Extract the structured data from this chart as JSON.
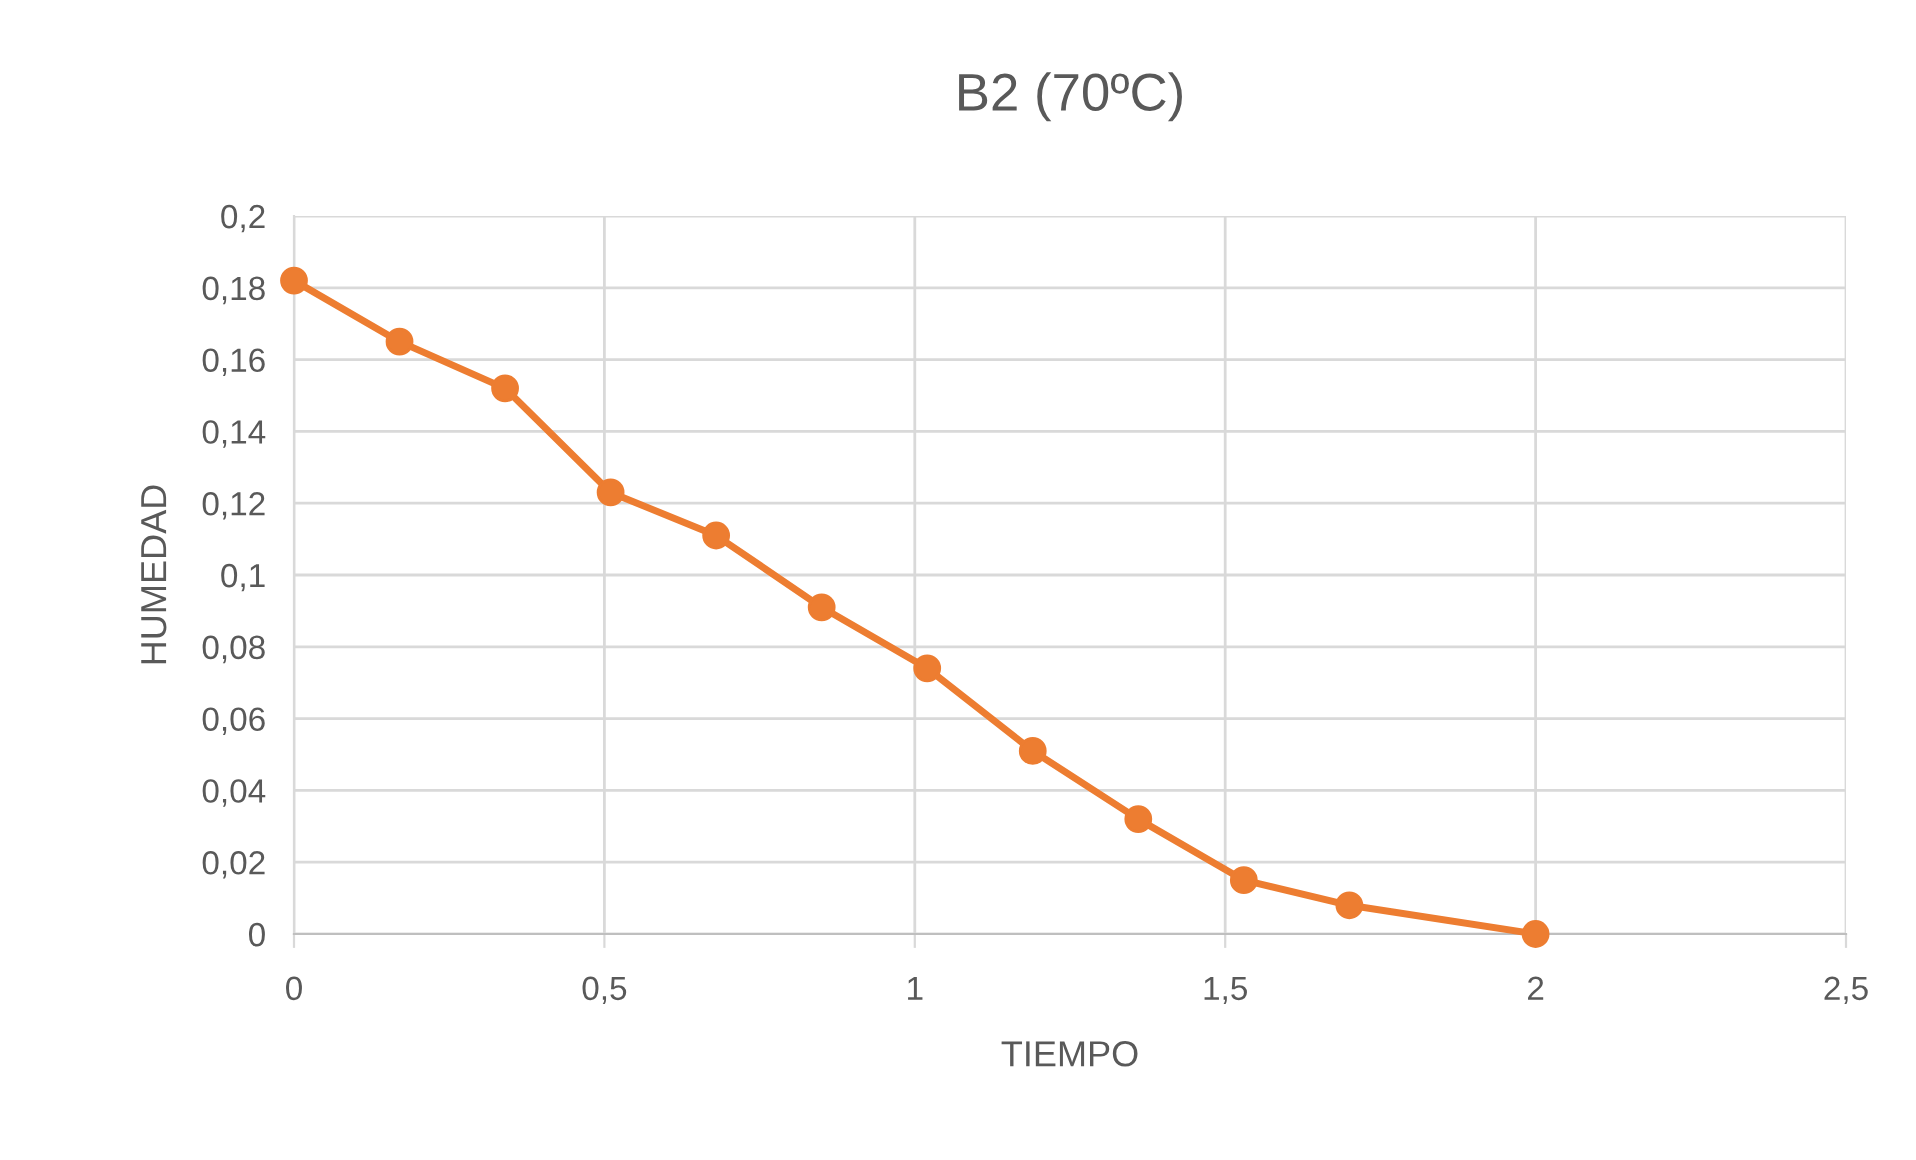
{
  "chart_data": {
    "type": "line",
    "title": "B2 (70ºC)",
    "xlabel": "TIEMPO",
    "ylabel": "HUMEDAD",
    "x": [
      0,
      0.17,
      0.34,
      0.51,
      0.68,
      0.85,
      1.02,
      1.19,
      1.36,
      1.53,
      1.7,
      2.0
    ],
    "series": [
      {
        "color": "#ed7d31",
        "values": [
          0.182,
          0.165,
          0.152,
          0.123,
          0.111,
          0.091,
          0.074,
          0.051,
          0.032,
          0.015,
          0.008,
          0
        ]
      }
    ],
    "xlim": [
      0,
      2.5
    ],
    "ylim": [
      0,
      0.2
    ],
    "xticks": [
      0,
      {
        "value": 0.5,
        "label": "0,5"
      },
      1,
      {
        "value": 1.5,
        "label": "1,5"
      },
      2,
      {
        "value": 2.5,
        "label": "2,5"
      }
    ],
    "yticks": [
      0,
      {
        "value": 0.02,
        "label": "0,02"
      },
      {
        "value": 0.04,
        "label": "0,04"
      },
      {
        "value": 0.06,
        "label": "0,06"
      },
      {
        "value": 0.08,
        "label": "0,08"
      },
      {
        "value": 0.1,
        "label": "0,1"
      },
      {
        "value": 0.12,
        "label": "0,12"
      },
      {
        "value": 0.14,
        "label": "0,14"
      },
      {
        "value": 0.16,
        "label": "0,16"
      },
      {
        "value": 0.18,
        "label": "0,18"
      },
      {
        "value": 0.2,
        "label": "0,2"
      }
    ],
    "grid": true,
    "marker": "circle",
    "line_style": "solid",
    "legend": false
  }
}
